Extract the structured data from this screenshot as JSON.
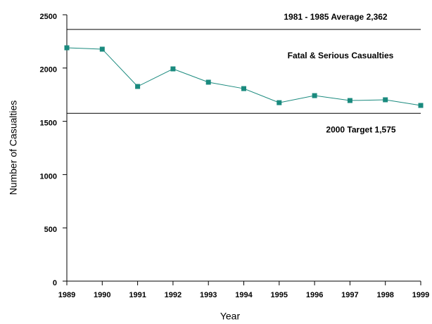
{
  "chart_data": {
    "type": "line",
    "y_label": "Number of Casualties",
    "x_label": "Year",
    "categories": [
      "1989",
      "1990",
      "1991",
      "1992",
      "1993",
      "1994",
      "1995",
      "1996",
      "1997",
      "1998",
      "1999"
    ],
    "series": [
      {
        "name": "Fatal & Serious Casualties",
        "color": "#1a8a7e",
        "values": [
          2190,
          2177,
          1827,
          1992,
          1867,
          1807,
          1675,
          1741,
          1695,
          1702,
          1649
        ]
      }
    ],
    "reference_lines": [
      {
        "value": 2362,
        "label": "1981 - 1985 Average  2,362"
      },
      {
        "value": 1575,
        "label": "2000 Target  1,575"
      }
    ],
    "ylim": [
      0,
      2500
    ],
    "yticks": [
      0,
      500,
      1000,
      1500,
      2000,
      2500
    ]
  }
}
